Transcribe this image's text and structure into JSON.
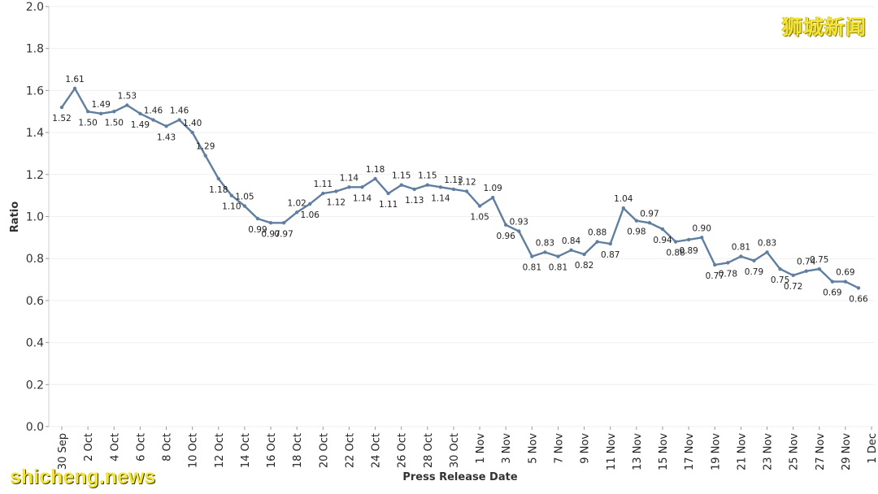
{
  "chart_data": {
    "type": "line",
    "xlabel": "Press Release Date",
    "ylabel": "Ratio",
    "ylim": [
      0,
      2.0
    ],
    "yticks": [
      "0.0",
      "0.2",
      "0.4",
      "0.6",
      "0.8",
      "1.0",
      "1.2",
      "1.4",
      "1.6",
      "1.8",
      "2.0"
    ],
    "x_tick_labels": [
      "30 Sep",
      "2 Oct",
      "4 Oct",
      "6 Oct",
      "8 Oct",
      "10 Oct",
      "12 Oct",
      "14 Oct",
      "16 Oct",
      "18 Oct",
      "20 Oct",
      "22 Oct",
      "24 Oct",
      "26 Oct",
      "28 Oct",
      "30 Oct",
      "1 Nov",
      "3 Nov",
      "5 Nov",
      "7 Nov",
      "9 Nov",
      "11 Nov",
      "13 Nov",
      "15 Nov",
      "17 Nov",
      "19 Nov",
      "21 Nov",
      "23 Nov",
      "25 Nov",
      "27 Nov",
      "29 Nov",
      "1 Dec"
    ],
    "grid": true,
    "line_color": "#5f7ea0",
    "values": [
      1.52,
      1.61,
      1.5,
      1.49,
      1.5,
      1.53,
      1.49,
      1.46,
      1.43,
      1.46,
      1.4,
      1.29,
      1.18,
      1.1,
      1.05,
      0.99,
      0.97,
      0.97,
      1.02,
      1.06,
      1.11,
      1.12,
      1.14,
      1.14,
      1.18,
      1.11,
      1.15,
      1.13,
      1.15,
      1.14,
      1.13,
      1.12,
      1.05,
      1.09,
      0.96,
      0.93,
      0.81,
      0.83,
      0.81,
      0.84,
      0.82,
      0.88,
      0.87,
      1.04,
      0.98,
      0.97,
      0.94,
      0.88,
      0.89,
      0.9,
      0.77,
      0.78,
      0.81,
      0.79,
      0.83,
      0.75,
      0.72,
      0.74,
      0.75,
      0.69,
      0.69,
      0.66
    ],
    "label_positions": [
      "below",
      "above",
      "below",
      "above",
      "below",
      "above",
      "below",
      "above",
      "below",
      "above",
      "above",
      "above",
      "below",
      "below",
      "above",
      "below",
      "below",
      "below",
      "above",
      "below",
      "above",
      "below",
      "above",
      "below",
      "above",
      "below",
      "above",
      "below",
      "above",
      "below",
      "above",
      "above",
      "below",
      "above",
      "below",
      "above",
      "below",
      "above",
      "below",
      "above",
      "below",
      "above",
      "below",
      "above",
      "below",
      "above",
      "below",
      "below",
      "below",
      "above",
      "below",
      "below",
      "above",
      "below",
      "above",
      "below",
      "below",
      "above",
      "above",
      "below",
      "above",
      "below"
    ]
  },
  "watermarks": {
    "top_right": "狮城新闻",
    "bottom_left": "shicheng.news"
  }
}
